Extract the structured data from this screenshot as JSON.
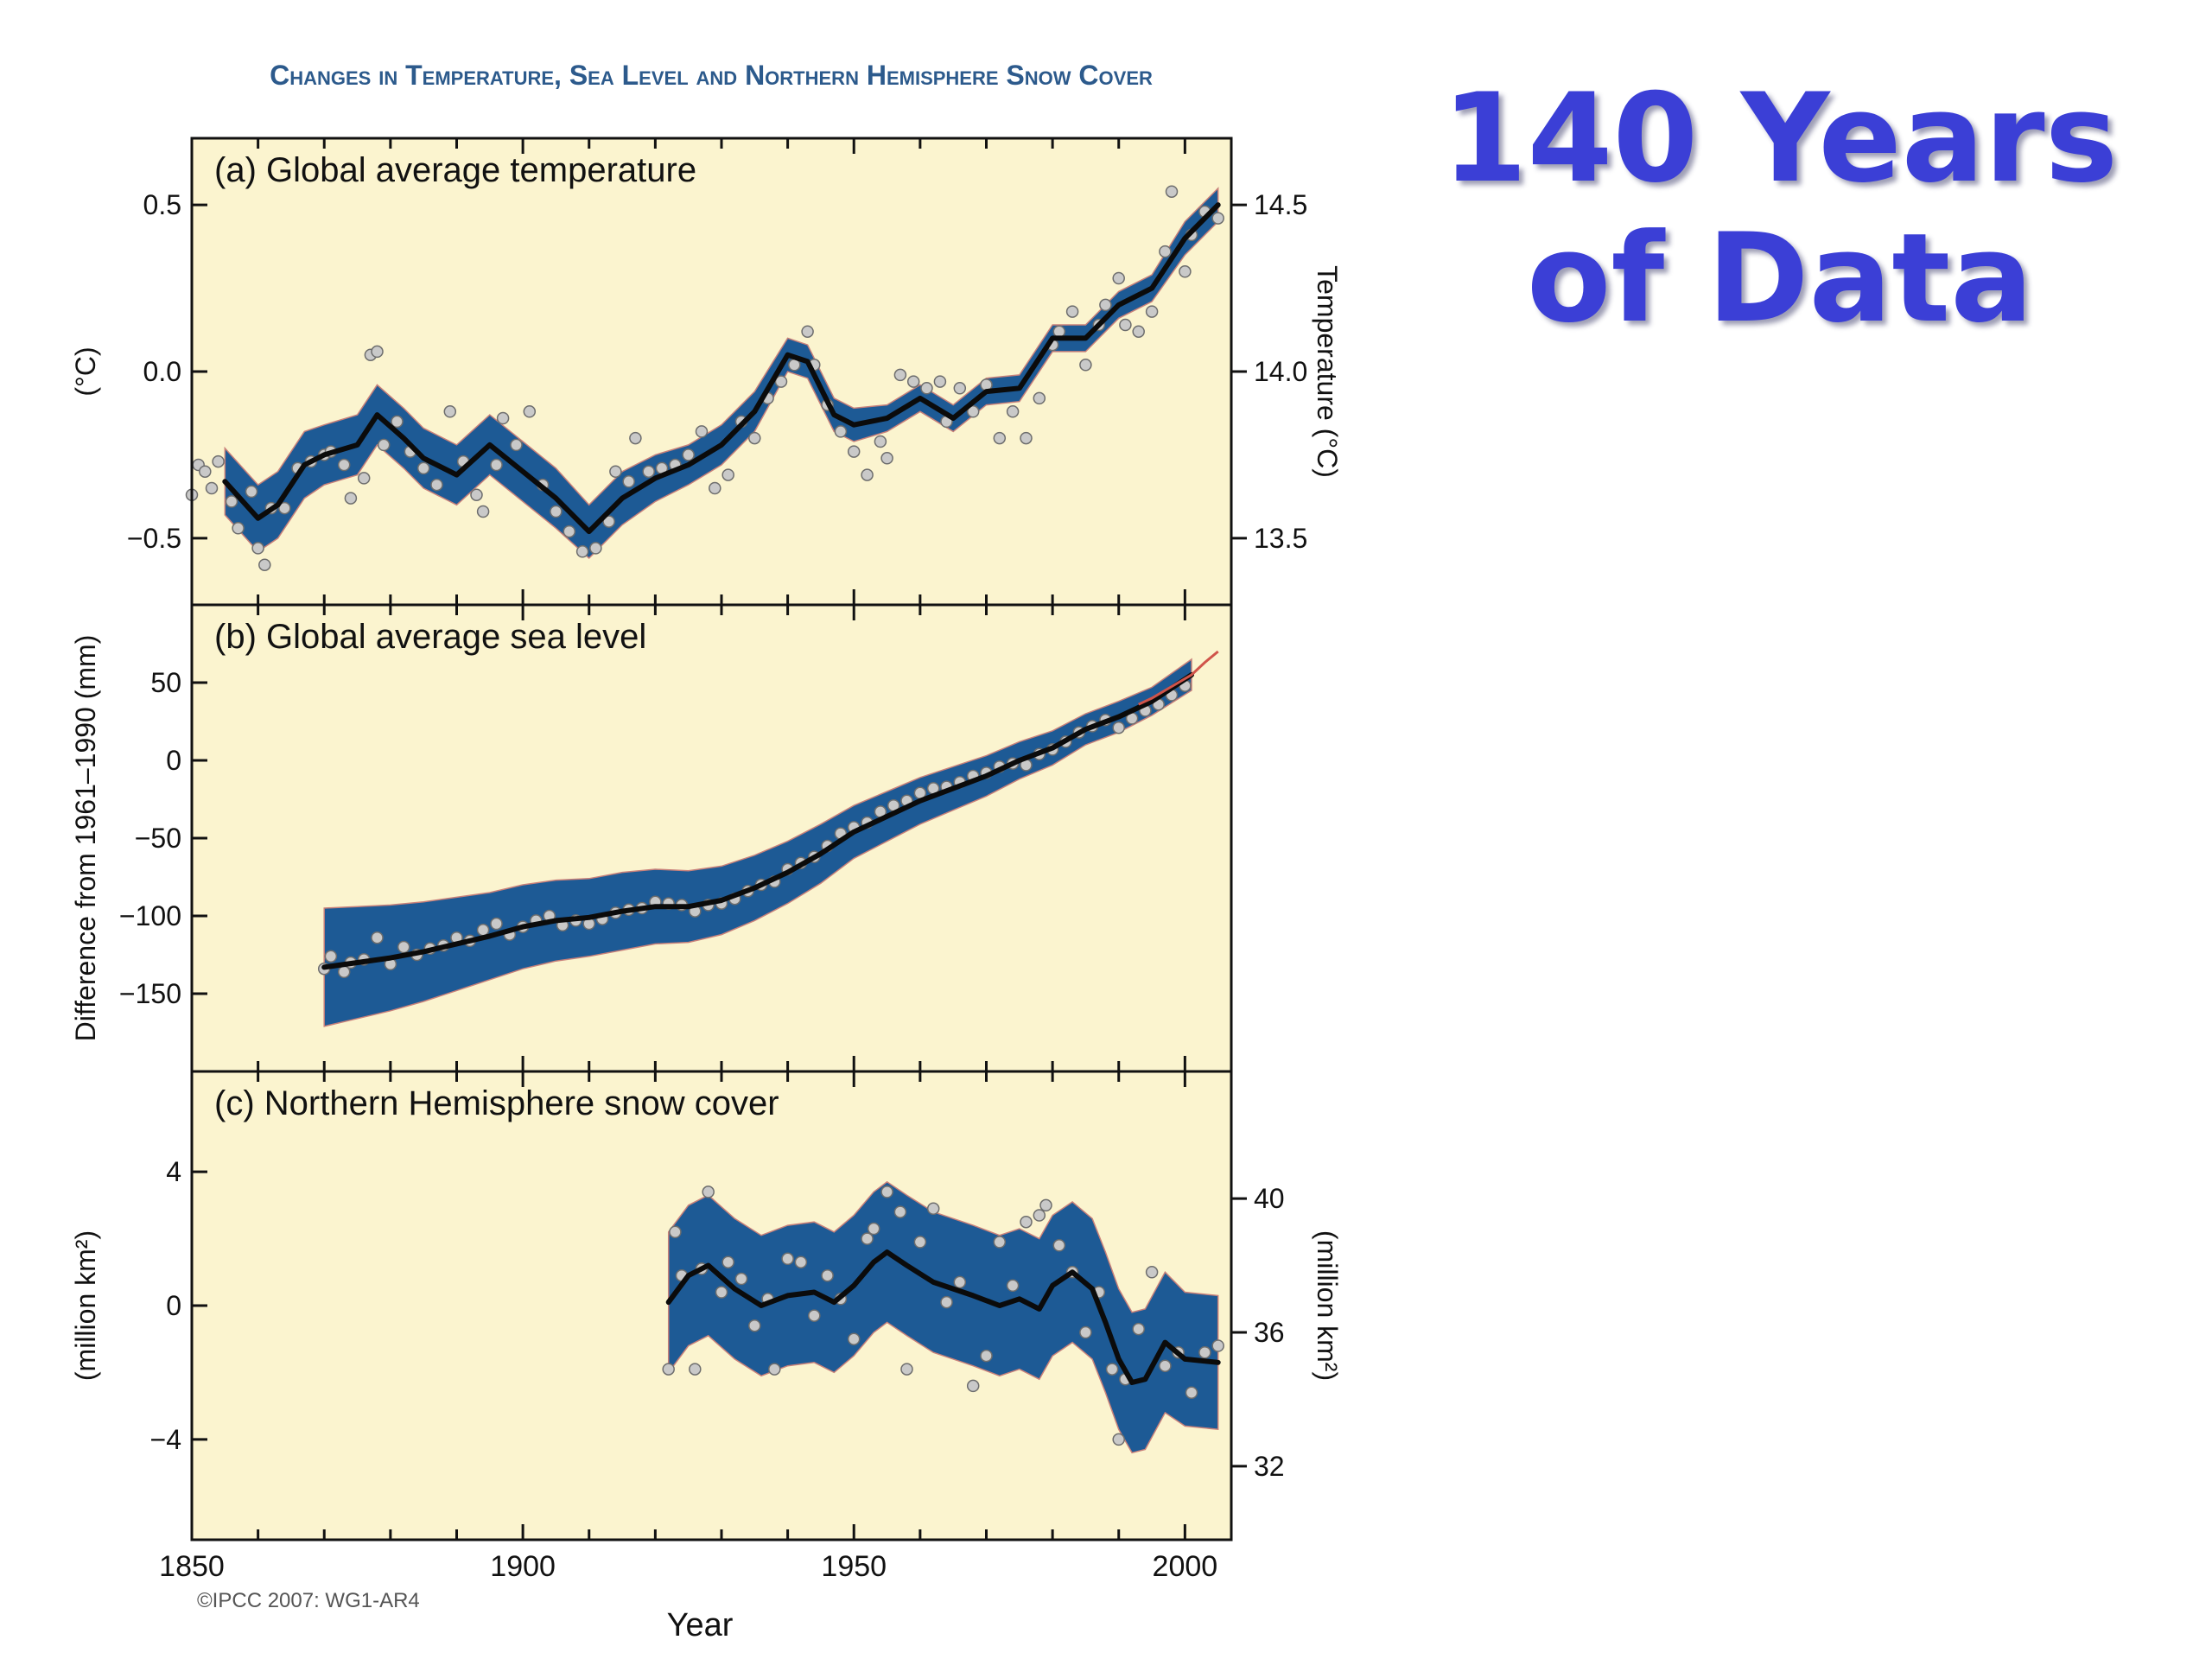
{
  "slide": {
    "title_line1": "140 Years",
    "title_line2": "of Data"
  },
  "figure": {
    "title": "Changes in Temperature, Sea Level and Northern Hemisphere Snow Cover",
    "xlabel": "Year",
    "credit": "©IPCC  2007: WG1-AR4"
  },
  "colors": {
    "panel_bg": "#fbf4cf",
    "band": "#1d5a95",
    "band_edge": "#c8807a",
    "line": "#0b0b0b",
    "point_fill": "#c9c9c9",
    "point_stroke": "#6d6d6d",
    "satellite_line": "#d0544a",
    "title_blue": "#2c5a8c"
  },
  "chart_data": [
    {
      "type": "line",
      "panel": "a",
      "title": "(a) Global average temperature",
      "ylabel": "(°C)",
      "ylabel_right": "Temperature (°C)",
      "xlim": [
        1850,
        2007
      ],
      "ylim": [
        -0.7,
        0.7
      ],
      "yticks": [
        -0.5,
        0.0,
        0.5
      ],
      "ytick_labels": [
        "−0.5",
        "0.0",
        "0.5"
      ],
      "right_ticks": [
        13.5,
        14.0,
        14.5
      ],
      "right_tick_labels": [
        "13.5",
        "14.0",
        "14.5"
      ],
      "right_offset": 14.0,
      "xticks": [
        1850,
        1900,
        1950,
        2000
      ],
      "smooth": {
        "x": [
          1855,
          1860,
          1863,
          1867,
          1870,
          1875,
          1878,
          1882,
          1885,
          1890,
          1895,
          1900,
          1905,
          1910,
          1915,
          1920,
          1925,
          1930,
          1935,
          1940,
          1943,
          1947,
          1950,
          1955,
          1960,
          1965,
          1970,
          1975,
          1980,
          1985,
          1990,
          1995,
          2000,
          2005
        ],
        "y": [
          -0.33,
          -0.44,
          -0.4,
          -0.28,
          -0.25,
          -0.22,
          -0.13,
          -0.2,
          -0.26,
          -0.31,
          -0.22,
          -0.3,
          -0.38,
          -0.48,
          -0.38,
          -0.32,
          -0.28,
          -0.22,
          -0.12,
          0.05,
          0.03,
          -0.13,
          -0.16,
          -0.14,
          -0.08,
          -0.14,
          -0.06,
          -0.05,
          0.1,
          0.1,
          0.2,
          0.25,
          0.4,
          0.5
        ]
      },
      "band_half_width": [
        0.1,
        0.1,
        0.1,
        0.1,
        0.09,
        0.09,
        0.09,
        0.09,
        0.09,
        0.09,
        0.09,
        0.09,
        0.09,
        0.08,
        0.08,
        0.07,
        0.06,
        0.06,
        0.06,
        0.05,
        0.05,
        0.05,
        0.05,
        0.04,
        0.04,
        0.04,
        0.04,
        0.04,
        0.04,
        0.04,
        0.04,
        0.04,
        0.05,
        0.05
      ],
      "points": {
        "x": [
          1850,
          1851,
          1852,
          1853,
          1854,
          1856,
          1857,
          1859,
          1860,
          1861,
          1862,
          1864,
          1866,
          1868,
          1870,
          1871,
          1873,
          1874,
          1876,
          1877,
          1878,
          1879,
          1881,
          1883,
          1885,
          1887,
          1889,
          1891,
          1893,
          1894,
          1896,
          1897,
          1899,
          1901,
          1903,
          1905,
          1907,
          1909,
          1911,
          1913,
          1914,
          1916,
          1917,
          1919,
          1921,
          1923,
          1925,
          1927,
          1929,
          1931,
          1933,
          1935,
          1937,
          1939,
          1941,
          1943,
          1944,
          1946,
          1948,
          1950,
          1952,
          1954,
          1955,
          1957,
          1959,
          1961,
          1963,
          1964,
          1966,
          1968,
          1970,
          1972,
          1974,
          1976,
          1978,
          1980,
          1981,
          1983,
          1985,
          1987,
          1988,
          1990,
          1991,
          1993,
          1995,
          1997,
          1998,
          2000,
          2001,
          2003,
          2005
        ],
        "y": [
          -0.37,
          -0.28,
          -0.3,
          -0.35,
          -0.27,
          -0.39,
          -0.47,
          -0.36,
          -0.53,
          -0.58,
          -0.41,
          -0.41,
          -0.29,
          -0.27,
          -0.25,
          -0.24,
          -0.28,
          -0.38,
          -0.32,
          0.05,
          0.06,
          -0.22,
          -0.15,
          -0.24,
          -0.29,
          -0.34,
          -0.12,
          -0.27,
          -0.37,
          -0.42,
          -0.28,
          -0.14,
          -0.22,
          -0.12,
          -0.34,
          -0.42,
          -0.48,
          -0.54,
          -0.53,
          -0.45,
          -0.3,
          -0.33,
          -0.2,
          -0.3,
          -0.29,
          -0.28,
          -0.25,
          -0.18,
          -0.35,
          -0.31,
          -0.15,
          -0.2,
          -0.08,
          -0.03,
          0.02,
          0.12,
          0.02,
          -0.1,
          -0.18,
          -0.24,
          -0.31,
          -0.21,
          -0.26,
          -0.01,
          -0.03,
          -0.05,
          -0.03,
          -0.15,
          -0.05,
          -0.12,
          -0.04,
          -0.2,
          -0.12,
          -0.2,
          -0.08,
          0.08,
          0.12,
          0.18,
          0.02,
          0.14,
          0.2,
          0.28,
          0.14,
          0.12,
          0.18,
          0.36,
          0.54,
          0.3,
          0.41,
          0.48,
          0.46
        ]
      }
    },
    {
      "type": "line",
      "panel": "b",
      "title": "(b) Global average sea level",
      "ylabel": "Difference from 1961–1990 (mm)",
      "xlim": [
        1850,
        2007
      ],
      "ylim": [
        -200,
        100
      ],
      "yticks": [
        -150,
        -100,
        -50,
        0,
        50
      ],
      "ytick_labels": [
        "−150",
        "−100",
        "−50",
        "0",
        "50"
      ],
      "xticks": [
        1850,
        1900,
        1950,
        2000
      ],
      "smooth": {
        "x": [
          1870,
          1875,
          1880,
          1885,
          1890,
          1895,
          1900,
          1905,
          1910,
          1915,
          1920,
          1925,
          1930,
          1935,
          1940,
          1945,
          1950,
          1955,
          1960,
          1965,
          1970,
          1975,
          1980,
          1985,
          1990,
          1995,
          2001
        ],
        "y": [
          -133,
          -130,
          -127,
          -123,
          -118,
          -113,
          -107,
          -103,
          -101,
          -97,
          -94,
          -94,
          -90,
          -82,
          -72,
          -60,
          -46,
          -36,
          -26,
          -18,
          -10,
          0,
          8,
          20,
          28,
          38,
          55
        ]
      },
      "band_half_width": [
        38,
        36,
        34,
        32,
        30,
        28,
        27,
        26,
        25,
        25,
        24,
        23,
        22,
        21,
        20,
        19,
        17,
        16,
        15,
        14,
        13,
        12,
        11,
        10,
        10,
        9,
        10
      ],
      "points": {
        "x": [
          1870,
          1871,
          1873,
          1874,
          1876,
          1878,
          1880,
          1882,
          1884,
          1886,
          1888,
          1890,
          1892,
          1894,
          1896,
          1898,
          1900,
          1902,
          1904,
          1906,
          1908,
          1910,
          1912,
          1914,
          1916,
          1918,
          1920,
          1922,
          1924,
          1926,
          1928,
          1930,
          1932,
          1934,
          1936,
          1938,
          1940,
          1942,
          1944,
          1946,
          1948,
          1950,
          1952,
          1954,
          1956,
          1958,
          1960,
          1962,
          1964,
          1966,
          1968,
          1970,
          1972,
          1974,
          1976,
          1978,
          1980,
          1982,
          1984,
          1986,
          1988,
          1990,
          1992,
          1994,
          1996,
          1998,
          2000
        ],
        "y": [
          -134,
          -126,
          -136,
          -130,
          -128,
          -114,
          -131,
          -120,
          -125,
          -121,
          -119,
          -114,
          -116,
          -109,
          -105,
          -112,
          -107,
          -103,
          -100,
          -106,
          -103,
          -105,
          -102,
          -98,
          -96,
          -95,
          -91,
          -92,
          -93,
          -97,
          -93,
          -92,
          -89,
          -84,
          -80,
          -78,
          -70,
          -66,
          -62,
          -55,
          -47,
          -43,
          -40,
          -33,
          -29,
          -26,
          -21,
          -18,
          -17,
          -14,
          -10,
          -8,
          -4,
          -2,
          -3,
          4,
          7,
          12,
          18,
          22,
          26,
          21,
          27,
          32,
          36,
          42,
          48
        ]
      },
      "satellite": {
        "x": [
          1993,
          1995,
          1997,
          1999,
          2001,
          2003,
          2005
        ],
        "y": [
          36,
          40,
          45,
          50,
          55,
          63,
          70
        ]
      }
    },
    {
      "type": "line",
      "panel": "c",
      "title": "(c) Northern Hemisphere snow cover",
      "ylabel": "(million km²)",
      "ylabel_right": "(million km²)",
      "xlim": [
        1850,
        2007
      ],
      "ylim": [
        -7,
        7
      ],
      "yticks": [
        -4,
        0,
        4
      ],
      "ytick_labels": [
        "−4",
        "0",
        "4"
      ],
      "right_ticks": [
        32,
        36,
        40
      ],
      "right_tick_labels": [
        "32",
        "36",
        "40"
      ],
      "right_offset": 36.8,
      "xticks": [
        1850,
        1900,
        1950,
        2000
      ],
      "xtick_labels": [
        "1850",
        "1900",
        "1950",
        "2000"
      ],
      "smooth": {
        "x": [
          1922,
          1925,
          1928,
          1932,
          1936,
          1940,
          1944,
          1947,
          1950,
          1953,
          1955,
          1958,
          1962,
          1965,
          1968,
          1972,
          1975,
          1978,
          1980,
          1983,
          1986,
          1988,
          1990,
          1992,
          1994,
          1997,
          2000,
          2005
        ],
        "y": [
          0.1,
          0.9,
          1.2,
          0.5,
          0.0,
          0.3,
          0.4,
          0.1,
          0.6,
          1.3,
          1.6,
          1.2,
          0.7,
          0.5,
          0.3,
          0.0,
          0.2,
          -0.1,
          0.6,
          1.0,
          0.5,
          -0.5,
          -1.6,
          -2.3,
          -2.2,
          -1.1,
          -1.6,
          -1.7
        ]
      },
      "band_half_width": [
        2.1,
        2.1,
        2.1,
        2.1,
        2.1,
        2.1,
        2.1,
        2.1,
        2.1,
        2.1,
        2.1,
        2.1,
        2.1,
        2.1,
        2.1,
        2.1,
        2.1,
        2.1,
        2.1,
        2.1,
        2.1,
        2.1,
        2.1,
        2.1,
        2.1,
        2.1,
        2.0,
        2.0
      ],
      "points": {
        "x": [
          1922,
          1923,
          1924,
          1926,
          1927,
          1928,
          1930,
          1931,
          1933,
          1935,
          1937,
          1938,
          1940,
          1942,
          1944,
          1946,
          1948,
          1950,
          1952,
          1953,
          1955,
          1957,
          1958,
          1960,
          1962,
          1964,
          1966,
          1968,
          1970,
          1972,
          1974,
          1976,
          1978,
          1979,
          1981,
          1983,
          1985,
          1987,
          1989,
          1990,
          1991,
          1993,
          1995,
          1997,
          1999,
          2001,
          2003,
          2005
        ],
        "y": [
          -1.9,
          2.2,
          0.9,
          -1.9,
          1.1,
          3.4,
          0.4,
          1.3,
          0.8,
          -0.6,
          0.2,
          -1.9,
          1.4,
          1.3,
          -0.3,
          0.9,
          0.2,
          -1.0,
          2.0,
          2.3,
          3.4,
          2.8,
          -1.9,
          1.9,
          2.9,
          0.1,
          0.7,
          -2.4,
          -1.5,
          1.9,
          0.6,
          2.5,
          2.7,
          3.0,
          1.8,
          1.0,
          -0.8,
          0.4,
          -1.9,
          -4.0,
          -2.2,
          -0.7,
          1.0,
          -1.8,
          -1.4,
          -2.6,
          -1.4,
          -1.2
        ]
      }
    }
  ]
}
